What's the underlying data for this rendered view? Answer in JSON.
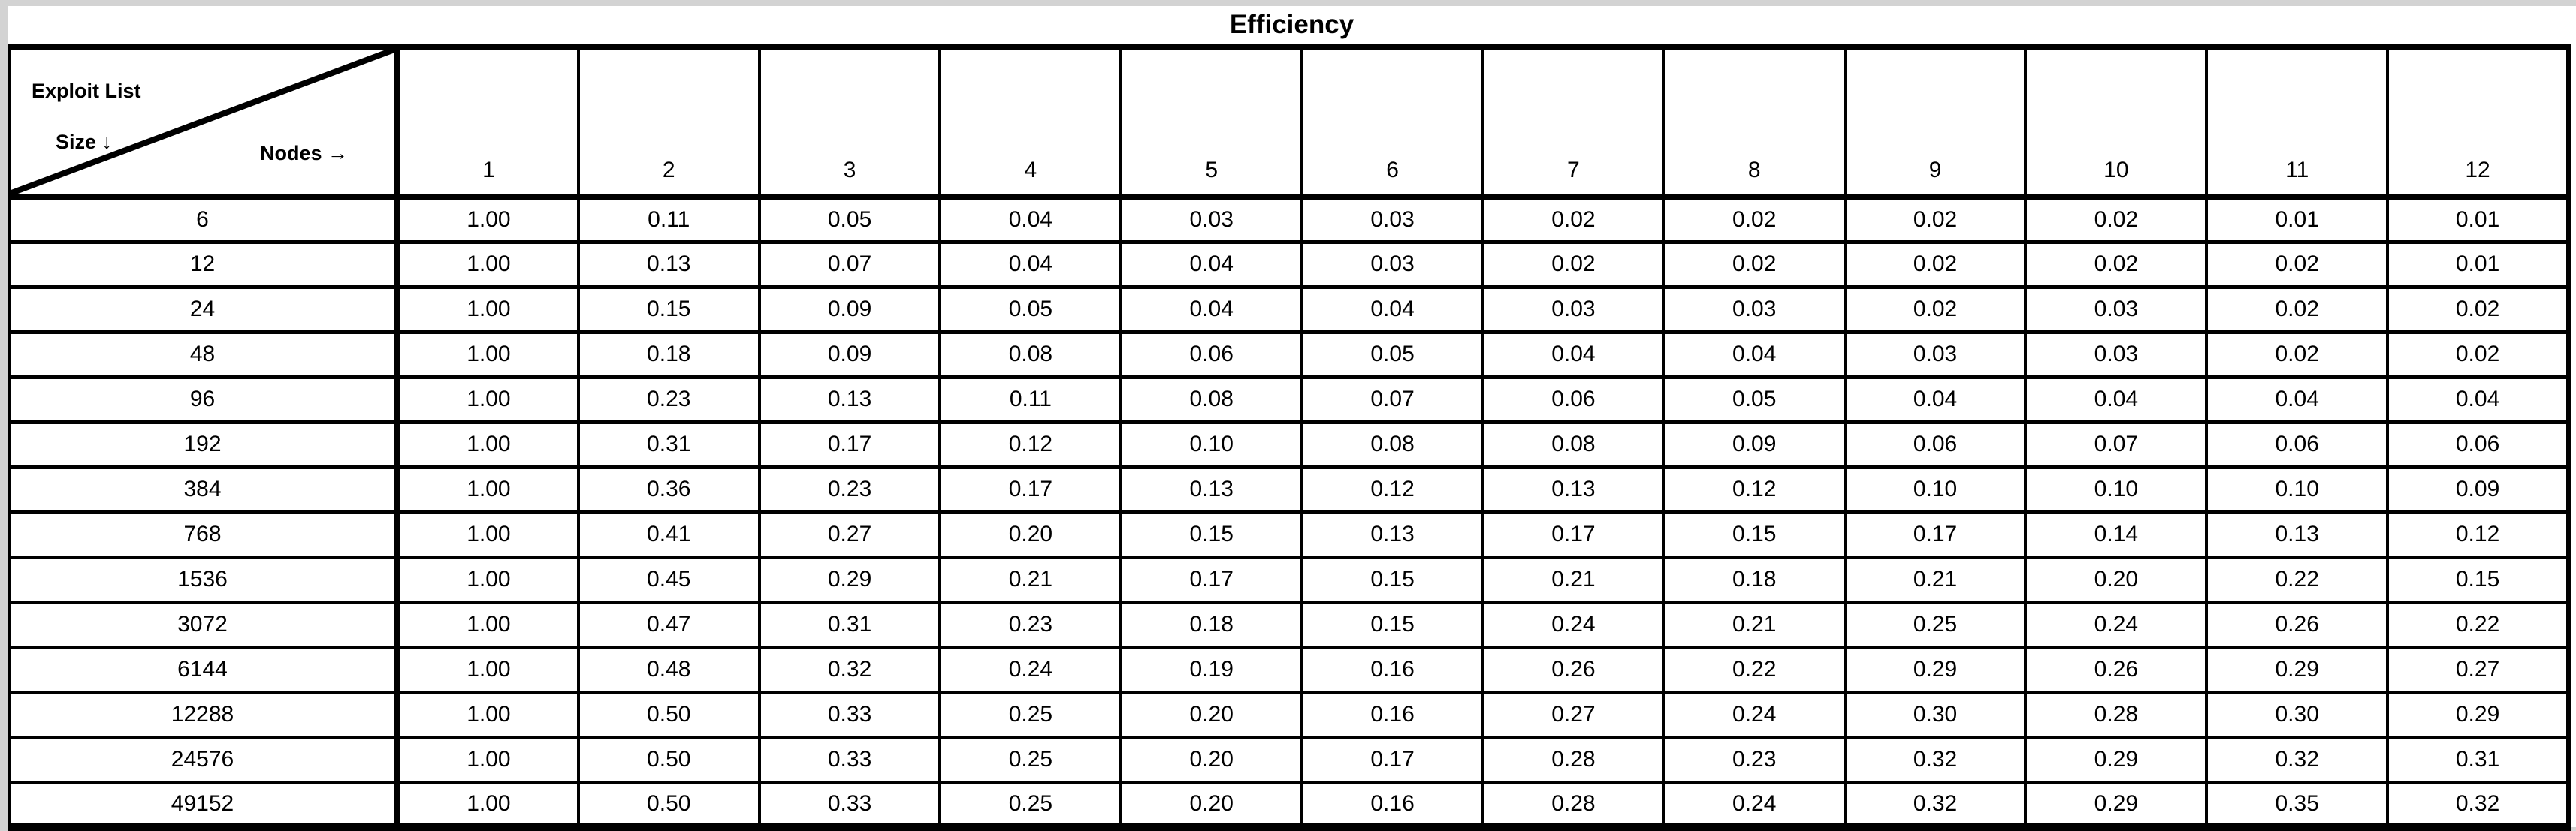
{
  "title": "Efficiency",
  "corner": {
    "line1": "Exploit List",
    "line2": "Size ↓",
    "nodes_label": "Nodes →"
  },
  "colors": {
    "grid": "#000000",
    "background": "#ffffff",
    "page_margin": "#d3d3d3",
    "text": "#000000"
  },
  "chart_data": {
    "type": "table",
    "title": "Efficiency",
    "row_axis_label": "Exploit List Size ↓",
    "col_axis_label": "Nodes →",
    "columns": [
      "1",
      "2",
      "3",
      "4",
      "5",
      "6",
      "7",
      "8",
      "9",
      "10",
      "11",
      "12"
    ],
    "rows": [
      {
        "label": "6",
        "values": [
          "1.00",
          "0.11",
          "0.05",
          "0.04",
          "0.03",
          "0.03",
          "0.02",
          "0.02",
          "0.02",
          "0.02",
          "0.01",
          "0.01"
        ]
      },
      {
        "label": "12",
        "values": [
          "1.00",
          "0.13",
          "0.07",
          "0.04",
          "0.04",
          "0.03",
          "0.02",
          "0.02",
          "0.02",
          "0.02",
          "0.02",
          "0.01"
        ]
      },
      {
        "label": "24",
        "values": [
          "1.00",
          "0.15",
          "0.09",
          "0.05",
          "0.04",
          "0.04",
          "0.03",
          "0.03",
          "0.02",
          "0.03",
          "0.02",
          "0.02"
        ]
      },
      {
        "label": "48",
        "values": [
          "1.00",
          "0.18",
          "0.09",
          "0.08",
          "0.06",
          "0.05",
          "0.04",
          "0.04",
          "0.03",
          "0.03",
          "0.02",
          "0.02"
        ]
      },
      {
        "label": "96",
        "values": [
          "1.00",
          "0.23",
          "0.13",
          "0.11",
          "0.08",
          "0.07",
          "0.06",
          "0.05",
          "0.04",
          "0.04",
          "0.04",
          "0.04"
        ]
      },
      {
        "label": "192",
        "values": [
          "1.00",
          "0.31",
          "0.17",
          "0.12",
          "0.10",
          "0.08",
          "0.08",
          "0.09",
          "0.06",
          "0.07",
          "0.06",
          "0.06"
        ]
      },
      {
        "label": "384",
        "values": [
          "1.00",
          "0.36",
          "0.23",
          "0.17",
          "0.13",
          "0.12",
          "0.13",
          "0.12",
          "0.10",
          "0.10",
          "0.10",
          "0.09"
        ]
      },
      {
        "label": "768",
        "values": [
          "1.00",
          "0.41",
          "0.27",
          "0.20",
          "0.15",
          "0.13",
          "0.17",
          "0.15",
          "0.17",
          "0.14",
          "0.13",
          "0.12"
        ]
      },
      {
        "label": "1536",
        "values": [
          "1.00",
          "0.45",
          "0.29",
          "0.21",
          "0.17",
          "0.15",
          "0.21",
          "0.18",
          "0.21",
          "0.20",
          "0.22",
          "0.15"
        ]
      },
      {
        "label": "3072",
        "values": [
          "1.00",
          "0.47",
          "0.31",
          "0.23",
          "0.18",
          "0.15",
          "0.24",
          "0.21",
          "0.25",
          "0.24",
          "0.26",
          "0.22"
        ]
      },
      {
        "label": "6144",
        "values": [
          "1.00",
          "0.48",
          "0.32",
          "0.24",
          "0.19",
          "0.16",
          "0.26",
          "0.22",
          "0.29",
          "0.26",
          "0.29",
          "0.27"
        ]
      },
      {
        "label": "12288",
        "values": [
          "1.00",
          "0.50",
          "0.33",
          "0.25",
          "0.20",
          "0.16",
          "0.27",
          "0.24",
          "0.30",
          "0.28",
          "0.30",
          "0.29"
        ]
      },
      {
        "label": "24576",
        "values": [
          "1.00",
          "0.50",
          "0.33",
          "0.25",
          "0.20",
          "0.17",
          "0.28",
          "0.23",
          "0.32",
          "0.29",
          "0.32",
          "0.31"
        ]
      },
      {
        "label": "49152",
        "values": [
          "1.00",
          "0.50",
          "0.33",
          "0.25",
          "0.20",
          "0.16",
          "0.28",
          "0.24",
          "0.32",
          "0.29",
          "0.35",
          "0.32"
        ]
      }
    ]
  }
}
